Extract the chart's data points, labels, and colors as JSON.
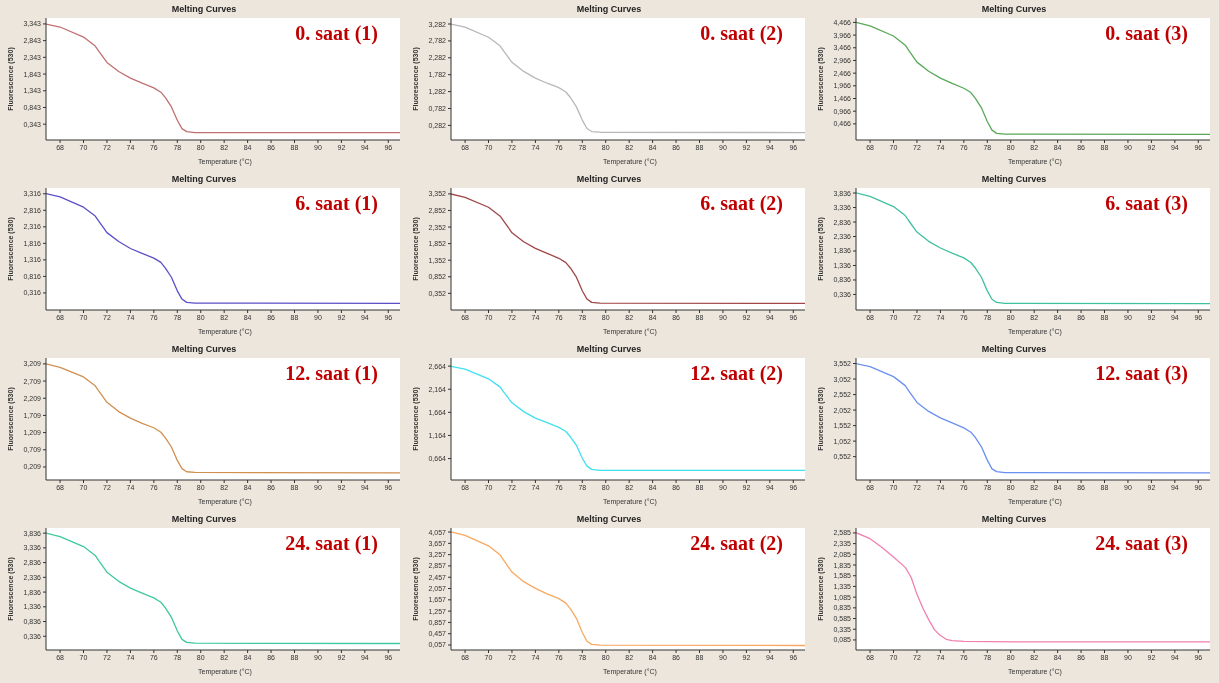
{
  "chart_data": [
    {
      "type": "line",
      "title": "Melting Curves",
      "xlabel": "Temperature (°C)",
      "ylabel": "Fluorescence (530)",
      "annotations": [
        "0. saat (1)"
      ],
      "x": [
        66.8,
        68,
        70,
        71,
        71.3,
        72,
        73,
        74,
        75,
        76,
        76.6,
        77,
        77.5,
        78,
        78.4,
        78.8,
        79.5,
        97
      ],
      "series": [
        {
          "color": "#c07070",
          "values": [
            3.34,
            3.25,
            2.95,
            2.68,
            2.53,
            2.19,
            1.92,
            1.72,
            1.57,
            1.43,
            1.3,
            1.13,
            0.86,
            0.46,
            0.21,
            0.12,
            0.09,
            0.09
          ]
        }
      ],
      "xlim": [
        66.8,
        97
      ],
      "xticks": [
        68,
        70,
        72,
        74,
        76,
        78,
        80,
        82,
        84,
        86,
        88,
        90,
        92,
        94,
        96
      ],
      "ylim": [
        -0.13,
        3.52
      ],
      "yticks": [
        {
          "value": 0.343,
          "label": "0,343"
        },
        {
          "value": 0.843,
          "label": "0,843"
        },
        {
          "value": 1.343,
          "label": "1,343"
        },
        {
          "value": 1.843,
          "label": "1,843"
        },
        {
          "value": 2.343,
          "label": "2,343"
        },
        {
          "value": 2.843,
          "label": "2,843"
        },
        {
          "value": 3.343,
          "label": "3,343"
        }
      ],
      "grid": false
    },
    {
      "type": "line",
      "title": "Melting Curves",
      "xlabel": "Temperature (°C)",
      "ylabel": "Fluorescence (530)",
      "annotations": [
        "0. saat (2)"
      ],
      "x": [
        66.8,
        68,
        70,
        71,
        71.3,
        72,
        73,
        74,
        75,
        76,
        76.6,
        77,
        77.5,
        78,
        78.4,
        78.8,
        79.5,
        97
      ],
      "series": [
        {
          "color": "#b8b8b8",
          "values": [
            3.28,
            3.19,
            2.89,
            2.63,
            2.48,
            2.15,
            1.88,
            1.68,
            1.53,
            1.4,
            1.27,
            1.1,
            0.83,
            0.44,
            0.19,
            0.1,
            0.08,
            0.07
          ]
        }
      ],
      "xlim": [
        66.8,
        97
      ],
      "xticks": [
        68,
        70,
        72,
        74,
        76,
        78,
        80,
        82,
        84,
        86,
        88,
        90,
        92,
        94,
        96
      ],
      "ylim": [
        -0.15,
        3.46
      ],
      "yticks": [
        {
          "value": 0.282,
          "label": "0,282"
        },
        {
          "value": 0.782,
          "label": "0,782"
        },
        {
          "value": 1.282,
          "label": "1,282"
        },
        {
          "value": 1.782,
          "label": "1,782"
        },
        {
          "value": 2.282,
          "label": "2,282"
        },
        {
          "value": 2.782,
          "label": "2,782"
        },
        {
          "value": 3.282,
          "label": "3,282"
        }
      ],
      "grid": false
    },
    {
      "type": "line",
      "title": "Melting Curves",
      "xlabel": "Temperature (°C)",
      "ylabel": "Fluorescence (530)",
      "annotations": [
        "0. saat (3)"
      ],
      "x": [
        66.8,
        68,
        70,
        71,
        71.3,
        72,
        73,
        74,
        75,
        76,
        76.6,
        77,
        77.5,
        78,
        78.4,
        78.8,
        79.5,
        97
      ],
      "series": [
        {
          "color": "#5aa85a",
          "values": [
            4.47,
            4.33,
            3.93,
            3.57,
            3.36,
            2.9,
            2.54,
            2.27,
            2.06,
            1.87,
            1.7,
            1.46,
            1.1,
            0.56,
            0.22,
            0.09,
            0.06,
            0.05
          ]
        }
      ],
      "xlim": [
        66.8,
        97
      ],
      "xticks": [
        68,
        70,
        72,
        74,
        76,
        78,
        80,
        82,
        84,
        86,
        88,
        90,
        92,
        94,
        96
      ],
      "ylim": [
        -0.17,
        4.64
      ],
      "yticks": [
        {
          "value": 0.466,
          "label": "0,466"
        },
        {
          "value": 0.966,
          "label": "0,966"
        },
        {
          "value": 1.466,
          "label": "1,466"
        },
        {
          "value": 1.966,
          "label": "1,966"
        },
        {
          "value": 2.466,
          "label": "2,466"
        },
        {
          "value": 2.966,
          "label": "2,966"
        },
        {
          "value": 3.466,
          "label": "3,466"
        },
        {
          "value": 3.966,
          "label": "3,966"
        },
        {
          "value": 4.466,
          "label": "4,466"
        }
      ],
      "grid": false
    },
    {
      "type": "line",
      "title": "Melting Curves",
      "xlabel": "Temperature (°C)",
      "ylabel": "Fluorescence (530)",
      "annotations": [
        "6. saat (1)"
      ],
      "x": [
        66.8,
        68,
        70,
        71,
        71.3,
        72,
        73,
        74,
        75,
        76,
        76.6,
        77,
        77.5,
        78,
        78.4,
        78.8,
        79.5,
        97
      ],
      "series": [
        {
          "color": "#5a50c8",
          "values": [
            3.32,
            3.22,
            2.91,
            2.64,
            2.49,
            2.14,
            1.87,
            1.66,
            1.51,
            1.37,
            1.24,
            1.06,
            0.79,
            0.38,
            0.13,
            0.03,
            0.01,
            0
          ]
        }
      ],
      "xlim": [
        66.8,
        97
      ],
      "xticks": [
        68,
        70,
        72,
        74,
        76,
        78,
        80,
        82,
        84,
        86,
        88,
        90,
        92,
        94,
        96
      ],
      "ylim": [
        -0.2,
        3.49
      ],
      "yticks": [
        {
          "value": 0.316,
          "label": "0,316"
        },
        {
          "value": 0.816,
          "label": "0,816"
        },
        {
          "value": 1.316,
          "label": "1,316"
        },
        {
          "value": 1.816,
          "label": "1,816"
        },
        {
          "value": 2.316,
          "label": "2,316"
        },
        {
          "value": 2.816,
          "label": "2,816"
        },
        {
          "value": 3.316,
          "label": "3,316"
        }
      ],
      "grid": false
    },
    {
      "type": "line",
      "title": "Melting Curves",
      "xlabel": "Temperature (°C)",
      "ylabel": "Fluorescence (530)",
      "annotations": [
        "6. saat (2)"
      ],
      "x": [
        66.8,
        68,
        70,
        71,
        71.3,
        72,
        73,
        74,
        75,
        76,
        76.6,
        77,
        77.5,
        78,
        78.4,
        78.8,
        79.5,
        97
      ],
      "series": [
        {
          "color": "#a04848",
          "values": [
            3.35,
            3.25,
            2.95,
            2.68,
            2.53,
            2.18,
            1.91,
            1.71,
            1.56,
            1.41,
            1.28,
            1.11,
            0.84,
            0.43,
            0.18,
            0.08,
            0.06,
            0.05
          ]
        }
      ],
      "xlim": [
        66.8,
        97
      ],
      "xticks": [
        68,
        70,
        72,
        74,
        76,
        78,
        80,
        82,
        84,
        86,
        88,
        90,
        92,
        94,
        96
      ],
      "ylim": [
        -0.15,
        3.53
      ],
      "yticks": [
        {
          "value": 0.352,
          "label": "0,352"
        },
        {
          "value": 0.852,
          "label": "0,852"
        },
        {
          "value": 1.352,
          "label": "1,352"
        },
        {
          "value": 1.852,
          "label": "1,852"
        },
        {
          "value": 2.352,
          "label": "2,352"
        },
        {
          "value": 2.852,
          "label": "2,852"
        },
        {
          "value": 3.352,
          "label": "3,352"
        }
      ],
      "grid": false
    },
    {
      "type": "line",
      "title": "Melting Curves",
      "xlabel": "Temperature (°C)",
      "ylabel": "Fluorescence (530)",
      "annotations": [
        "6. saat (3)"
      ],
      "x": [
        66.8,
        68,
        70,
        71,
        71.3,
        72,
        73,
        74,
        75,
        76,
        76.6,
        77,
        77.5,
        78,
        78.4,
        78.8,
        79.5,
        97
      ],
      "series": [
        {
          "color": "#40c0a0",
          "values": [
            3.84,
            3.72,
            3.37,
            3.06,
            2.88,
            2.49,
            2.17,
            1.94,
            1.76,
            1.6,
            1.44,
            1.24,
            0.93,
            0.46,
            0.17,
            0.06,
            0.03,
            0.02
          ]
        }
      ],
      "xlim": [
        66.8,
        97
      ],
      "xticks": [
        68,
        70,
        72,
        74,
        76,
        78,
        80,
        82,
        84,
        86,
        88,
        90,
        92,
        94,
        96
      ],
      "ylim": [
        -0.2,
        4.01
      ],
      "yticks": [
        {
          "value": 0.336,
          "label": "0,336"
        },
        {
          "value": 0.836,
          "label": "0,836"
        },
        {
          "value": 1.336,
          "label": "1,336"
        },
        {
          "value": 1.836,
          "label": "1,836"
        },
        {
          "value": 2.336,
          "label": "2,336"
        },
        {
          "value": 2.836,
          "label": "2,836"
        },
        {
          "value": 3.336,
          "label": "3,336"
        },
        {
          "value": 3.836,
          "label": "3,836"
        }
      ],
      "grid": false
    },
    {
      "type": "line",
      "title": "Melting Curves",
      "xlabel": "Temperature (°C)",
      "ylabel": "Fluorescence (530)",
      "annotations": [
        "12. saat (1)"
      ],
      "x": [
        66.8,
        68,
        70,
        71,
        71.3,
        72,
        73,
        74,
        75,
        76,
        76.6,
        77,
        77.5,
        78,
        78.4,
        78.8,
        79.5,
        97
      ],
      "series": [
        {
          "color": "#d09050",
          "values": [
            3.21,
            3.11,
            2.83,
            2.57,
            2.42,
            2.09,
            1.82,
            1.63,
            1.48,
            1.35,
            1.22,
            1.05,
            0.79,
            0.4,
            0.16,
            0.07,
            0.05,
            0.04
          ]
        }
      ],
      "xlim": [
        66.8,
        97
      ],
      "xticks": [
        68,
        70,
        72,
        74,
        76,
        78,
        80,
        82,
        84,
        86,
        88,
        90,
        92,
        94,
        96
      ],
      "ylim": [
        -0.17,
        3.38
      ],
      "yticks": [
        {
          "value": 0.209,
          "label": "0,209"
        },
        {
          "value": 0.709,
          "label": "0,709"
        },
        {
          "value": 1.209,
          "label": "1,209"
        },
        {
          "value": 1.709,
          "label": "1,709"
        },
        {
          "value": 2.209,
          "label": "2,209"
        },
        {
          "value": 2.709,
          "label": "2,709"
        },
        {
          "value": 3.209,
          "label": "3,209"
        }
      ],
      "grid": false
    },
    {
      "type": "line",
      "title": "Melting Curves",
      "xlabel": "Temperature (°C)",
      "ylabel": "Fluorescence (530)",
      "annotations": [
        "12. saat (2)"
      ],
      "x": [
        66.8,
        68,
        70,
        71,
        71.3,
        72,
        73,
        74,
        75,
        76,
        76.6,
        77,
        77.5,
        78,
        78.4,
        78.8,
        79.5,
        97
      ],
      "series": [
        {
          "color": "#40e0f0",
          "values": [
            2.66,
            2.6,
            2.39,
            2.21,
            2.1,
            1.87,
            1.68,
            1.54,
            1.44,
            1.34,
            1.25,
            1.13,
            0.95,
            0.67,
            0.5,
            0.43,
            0.41,
            0.41
          ]
        }
      ],
      "xlim": [
        66.8,
        97
      ],
      "xticks": [
        68,
        70,
        72,
        74,
        76,
        78,
        80,
        82,
        84,
        86,
        88,
        90,
        92,
        94,
        96
      ],
      "ylim": [
        0.2,
        2.84
      ],
      "yticks": [
        {
          "value": 0.664,
          "label": "0,664"
        },
        {
          "value": 1.164,
          "label": "1,164"
        },
        {
          "value": 1.664,
          "label": "1,664"
        },
        {
          "value": 2.164,
          "label": "2,164"
        },
        {
          "value": 2.664,
          "label": "2,664"
        }
      ],
      "grid": false
    },
    {
      "type": "line",
      "title": "Melting Curves",
      "xlabel": "Temperature (°C)",
      "ylabel": "Fluorescence (530)",
      "annotations": [
        "12. saat (3)"
      ],
      "x": [
        66.8,
        68,
        70,
        71,
        71.3,
        72,
        73,
        74,
        75,
        76,
        76.6,
        77,
        77.5,
        78,
        78.4,
        78.8,
        79.5,
        97
      ],
      "series": [
        {
          "color": "#6a90f0",
          "values": [
            3.55,
            3.45,
            3.13,
            2.84,
            2.67,
            2.3,
            2.01,
            1.8,
            1.64,
            1.48,
            1.34,
            1.16,
            0.87,
            0.44,
            0.16,
            0.07,
            0.04,
            0.03
          ]
        }
      ],
      "xlim": [
        66.8,
        97
      ],
      "xticks": [
        68,
        70,
        72,
        74,
        76,
        78,
        80,
        82,
        84,
        86,
        88,
        90,
        92,
        94,
        96
      ],
      "ylim": [
        -0.2,
        3.73
      ],
      "yticks": [
        {
          "value": 0.552,
          "label": "0,552"
        },
        {
          "value": 1.052,
          "label": "1,052"
        },
        {
          "value": 1.552,
          "label": "1,552"
        },
        {
          "value": 2.052,
          "label": "2,052"
        },
        {
          "value": 2.552,
          "label": "2,552"
        },
        {
          "value": 3.052,
          "label": "3,052"
        },
        {
          "value": 3.552,
          "label": "3,552"
        }
      ],
      "grid": false
    },
    {
      "type": "line",
      "title": "Melting Curves",
      "xlabel": "Temperature (°C)",
      "ylabel": "Fluorescence (530)",
      "annotations": [
        "24. saat (1)"
      ],
      "x": [
        66.8,
        68,
        70,
        71,
        71.3,
        72,
        73,
        74,
        75,
        76,
        76.6,
        77,
        77.5,
        78,
        78.4,
        78.8,
        79.5,
        97
      ],
      "series": [
        {
          "color": "#40c8a0",
          "values": [
            3.84,
            3.72,
            3.38,
            3.08,
            2.9,
            2.51,
            2.2,
            1.97,
            1.8,
            1.64,
            1.49,
            1.29,
            0.98,
            0.52,
            0.23,
            0.13,
            0.1,
            0.09
          ]
        }
      ],
      "xlim": [
        66.8,
        97
      ],
      "xticks": [
        68,
        70,
        72,
        74,
        76,
        78,
        80,
        82,
        84,
        86,
        88,
        90,
        92,
        94,
        96
      ],
      "ylim": [
        -0.13,
        4.01
      ],
      "yticks": [
        {
          "value": 0.336,
          "label": "0,336"
        },
        {
          "value": 0.836,
          "label": "0,836"
        },
        {
          "value": 1.336,
          "label": "1,336"
        },
        {
          "value": 1.836,
          "label": "1,836"
        },
        {
          "value": 2.336,
          "label": "2,336"
        },
        {
          "value": 2.836,
          "label": "2,836"
        },
        {
          "value": 3.336,
          "label": "3,336"
        },
        {
          "value": 3.836,
          "label": "3,836"
        }
      ],
      "grid": false
    },
    {
      "type": "line",
      "title": "Melting Curves",
      "xlabel": "Temperature (°C)",
      "ylabel": "Fluorescence (530)",
      "annotations": [
        "24. saat (2)"
      ],
      "x": [
        66.8,
        68,
        70,
        71,
        71.3,
        72,
        73,
        74,
        75,
        76,
        76.6,
        77,
        77.5,
        78,
        78.4,
        78.8,
        79.5,
        97
      ],
      "series": [
        {
          "color": "#f8a860",
          "values": [
            4.06,
            3.94,
            3.57,
            3.24,
            3.05,
            2.64,
            2.3,
            2.06,
            1.87,
            1.7,
            1.54,
            1.33,
            1,
            0.5,
            0.19,
            0.08,
            0.05,
            0.04
          ]
        }
      ],
      "xlim": [
        66.8,
        97
      ],
      "xticks": [
        68,
        70,
        72,
        74,
        76,
        78,
        80,
        82,
        84,
        86,
        88,
        90,
        92,
        94,
        96
      ],
      "ylim": [
        -0.12,
        4.2
      ],
      "yticks": [
        {
          "value": 0.057,
          "label": "0,057"
        },
        {
          "value": 0.457,
          "label": "0,457"
        },
        {
          "value": 0.857,
          "label": "0,857"
        },
        {
          "value": 1.257,
          "label": "1,257"
        },
        {
          "value": 1.657,
          "label": "1,657"
        },
        {
          "value": 2.057,
          "label": "2,057"
        },
        {
          "value": 2.457,
          "label": "2,457"
        },
        {
          "value": 2.857,
          "label": "2,857"
        },
        {
          "value": 3.257,
          "label": "3,257"
        },
        {
          "value": 3.657,
          "label": "3,657"
        },
        {
          "value": 4.057,
          "label": "4,057"
        }
      ],
      "grid": false
    },
    {
      "type": "line",
      "title": "Melting Curves",
      "xlabel": "Temperature (°C)",
      "ylabel": "Fluorescence (530)",
      "annotations": [
        "24. saat (3)"
      ],
      "x": [
        66.8,
        68,
        69,
        70,
        71,
        71.5,
        72,
        72.5,
        73,
        73.5,
        74,
        74.5,
        75,
        76,
        81,
        97
      ],
      "series": [
        {
          "color": "#f080b0",
          "values": [
            2.59,
            2.45,
            2.25,
            2.02,
            1.78,
            1.55,
            1.15,
            0.83,
            0.56,
            0.32,
            0.19,
            0.1,
            0.07,
            0.05,
            0.04,
            0.04
          ]
        }
      ],
      "xlim": [
        66.8,
        97
      ],
      "xticks": [
        68,
        70,
        72,
        74,
        76,
        78,
        80,
        82,
        84,
        86,
        88,
        90,
        92,
        94,
        96
      ],
      "ylim": [
        -0.15,
        2.7
      ],
      "yticks": [
        {
          "value": 0.085,
          "label": "0,085"
        },
        {
          "value": 0.335,
          "label": "0,335"
        },
        {
          "value": 0.585,
          "label": "0,585"
        },
        {
          "value": 0.835,
          "label": "0,835"
        },
        {
          "value": 1.085,
          "label": "1,085"
        },
        {
          "value": 1.335,
          "label": "1,335"
        },
        {
          "value": 1.585,
          "label": "1,585"
        },
        {
          "value": 1.835,
          "label": "1,835"
        },
        {
          "value": 2.085,
          "label": "2,085"
        },
        {
          "value": 2.335,
          "label": "2,335"
        },
        {
          "value": 2.585,
          "label": "2,585"
        }
      ],
      "grid": false
    }
  ]
}
